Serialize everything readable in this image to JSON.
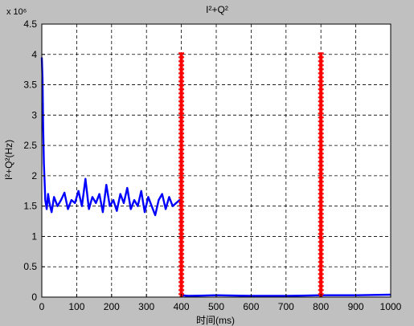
{
  "chart_data": {
    "type": "line",
    "title": "I²+Q²",
    "xlabel": "时间(ms)",
    "ylabel": "I²+Q²(Hz)",
    "exponent_label": "x 10⁶",
    "xlim": [
      0,
      1000
    ],
    "ylim": [
      0,
      4.5
    ],
    "xticks": [
      0,
      100,
      200,
      300,
      400,
      500,
      600,
      700,
      800,
      900,
      1000
    ],
    "yticks": [
      0,
      0.5,
      1,
      1.5,
      2,
      2.5,
      3,
      3.5,
      4,
      4.5
    ],
    "grid": true,
    "colors": {
      "signal": "#0000ff",
      "marker": "#ff0000",
      "axes_bg": "#ffffff",
      "figure_bg": "#c0c0c0"
    },
    "series": [
      {
        "color": "#0000ff",
        "x": [
          0,
          2,
          4,
          6,
          8,
          10,
          14,
          18,
          22,
          28,
          35,
          45,
          55,
          65,
          75,
          85,
          95,
          105,
          115,
          125,
          135,
          145,
          155,
          165,
          175,
          185,
          195,
          205,
          215,
          225,
          235,
          245,
          255,
          265,
          275,
          285,
          295,
          305,
          315,
          325,
          335,
          345,
          355,
          365,
          375,
          385,
          395,
          398,
          399,
          400,
          420,
          500,
          600,
          700,
          800,
          900,
          1000
        ],
        "y": [
          3.95,
          3.6,
          2.8,
          2.2,
          1.9,
          1.6,
          1.45,
          1.7,
          1.55,
          1.4,
          1.65,
          1.5,
          1.6,
          1.72,
          1.45,
          1.6,
          1.55,
          1.75,
          1.5,
          1.95,
          1.45,
          1.65,
          1.55,
          1.7,
          1.4,
          1.85,
          1.5,
          1.6,
          1.42,
          1.7,
          1.55,
          1.8,
          1.45,
          1.6,
          1.5,
          1.75,
          1.4,
          1.65,
          1.5,
          1.35,
          1.6,
          1.7,
          1.45,
          1.65,
          1.5,
          1.55,
          1.6,
          1.5,
          0.3,
          0.03,
          0.02,
          0.03,
          0.02,
          0.02,
          0.03,
          0.03,
          0.04
        ]
      }
    ],
    "markers": [
      {
        "x": 400,
        "y_range": [
          0,
          4.02
        ]
      },
      {
        "x": 800,
        "y_range": [
          0,
          4.02
        ]
      }
    ]
  }
}
